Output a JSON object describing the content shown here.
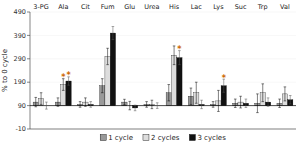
{
  "chart_data": {
    "type": "bar",
    "categories": [
      "3-PG",
      "Ala",
      "Cit",
      "Fum",
      "Glu",
      "Urea",
      "His",
      "Lac",
      "Lys",
      "Suc",
      "Trp",
      "Val"
    ],
    "series": [
      {
        "name": "1 cycle",
        "color": "#999999",
        "values": [
          105,
          105,
          95,
          175,
          105,
          95,
          145,
          130,
          95,
          100,
          100,
          100
        ],
        "errors": [
          20,
          18,
          12,
          30,
          12,
          12,
          35,
          35,
          12,
          18,
          40,
          18
        ]
      },
      {
        "name": "2 cycles",
        "color": "#dddddd",
        "values": [
          120,
          180,
          105,
          300,
          90,
          95,
          305,
          145,
          110,
          105,
          145,
          140
        ],
        "errors": [
          25,
          25,
          18,
          35,
          18,
          18,
          40,
          45,
          45,
          25,
          38,
          30
        ],
        "significant": [
          false,
          true,
          false,
          false,
          false,
          false,
          false,
          false,
          false,
          false,
          false,
          false
        ]
      },
      {
        "name": "3 cycles",
        "color": "#111111",
        "values": [
          90,
          195,
          95,
          400,
          80,
          90,
          295,
          95,
          175,
          100,
          105,
          115
        ],
        "errors": [
          15,
          18,
          12,
          28,
          12,
          12,
          30,
          18,
          28,
          18,
          18,
          18
        ],
        "significant": [
          false,
          true,
          false,
          false,
          false,
          false,
          true,
          false,
          true,
          false,
          false,
          false
        ]
      }
    ],
    "baseline": 90,
    "ylabel": "% to 0 cycle",
    "ylim": [
      -10,
      490
    ],
    "yticks": [
      -10,
      90,
      190,
      290,
      390,
      490
    ],
    "legend": "bottom",
    "significance_label": "*",
    "significance_color": "#cc6600"
  }
}
